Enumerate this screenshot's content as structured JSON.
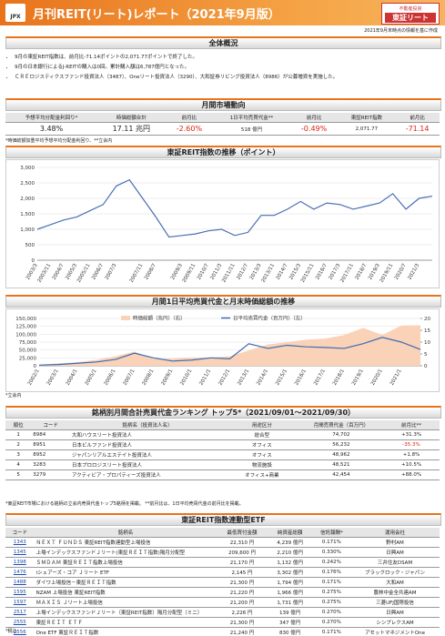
{
  "header": {
    "logo": "JPX",
    "title": "月刊REIT(リート)レポート（2021年9月版）",
    "brand_top": "不動産投資",
    "brand": "東証リート",
    "date_note": "2021年9月末時点の情報を基に作成"
  },
  "overview": {
    "title": "全体概況",
    "bullets": [
      "9月の東証REIT指数は、前月比-71.14ポイントの2,071.77ポイントで終了した。",
      "9月の日本銀行によるJ-REITの購入は0回。累計購入額は6,787億円となった。",
      "ＣＲＥロジスティクスファンド投資法人（3487）、Oneリート投資法人（3290）、大和証券リビング投資法人（8986）が公募増資を実施した。"
    ]
  },
  "market": {
    "title": "月間市場動向",
    "headers": [
      "予想平均分配金利回り*",
      "時価総額合計",
      "前月比",
      "1日平均売買代金**",
      "前月比",
      "東証REIT指数",
      "前月比"
    ],
    "values": [
      "3.48%",
      "17.11 兆円",
      "-2.60%",
      "518 億円",
      "-0.49%",
      "2,071.77",
      "-71.14"
    ],
    "note": "*時価総額加重平均予想平均分配金利回り、**立会内"
  },
  "chart_data": [
    {
      "type": "line",
      "title": "東証REIT指数の推移（ポイント）",
      "color": "#4a6fb5",
      "grid": true,
      "categories": [
        "2003/3",
        "2003/11",
        "2004/7",
        "2005/3",
        "2005/11",
        "2006/7",
        "2007/3",
        null,
        "2007/11",
        "2008/7",
        null,
        "2009/3",
        "2009/11",
        "2010/7",
        "2011/3",
        "2011/11",
        "2012/7",
        "2013/3",
        "2013/11",
        "2014/7",
        "2015/3",
        "2015/11",
        "2016/7",
        "2017/3",
        "2017/11",
        "2018/7",
        "2019/3",
        "2019/11",
        "2020/7",
        "2021/3",
        null
      ],
      "values": [
        1000,
        1150,
        1300,
        1400,
        1600,
        1800,
        2400,
        2600,
        2000,
        1400,
        750,
        800,
        850,
        950,
        1000,
        800,
        900,
        1450,
        1450,
        1650,
        1900,
        1650,
        1850,
        1800,
        1650,
        1750,
        1850,
        2150,
        1650,
        2000,
        2071.77
      ],
      "ylim": [
        0,
        3000
      ],
      "yticks": [
        0,
        500,
        {
          "value": 1000,
          "label": "1,000"
        },
        {
          "value": 1500,
          "label": "1,500"
        },
        {
          "value": 2000,
          "label": "2,000"
        },
        {
          "value": 2500,
          "label": "2,500"
        },
        {
          "value": 3000,
          "label": "3,000"
        }
      ]
    },
    {
      "type": "combo",
      "title": "月間1日平均売買代金と月末時価総額の推移",
      "note": "*立会内",
      "grid": true,
      "categories": [
        "2002/1",
        "2003/1",
        "2004/1",
        "2005/1",
        "2006/1",
        "2007/1",
        "2008/1",
        "2009/1",
        "2010/1",
        "2011/1",
        "2012/1",
        "2013/1",
        "2014/1",
        "2015/1",
        "2016/1",
        "2017/1",
        "2018/1",
        "2019/1",
        "2020/1",
        "2021/1",
        null
      ],
      "series": [
        {
          "name": "時価総額（兆円）（右）",
          "color": "#f9d2b8",
          "mark": "area",
          "axis": "y2",
          "values": [
            0.5,
            1,
            1.5,
            2.5,
            4,
            6,
            3,
            3,
            3.5,
            3.5,
            4,
            6.5,
            9,
            10,
            11,
            11.5,
            13,
            16,
            13,
            17,
            17.11
          ]
        },
        {
          "name": "日平均売買代金（百万円）（左）",
          "color": "#3d6bb3",
          "mark": "line",
          "values": [
            2000,
            4000,
            8000,
            12000,
            20000,
            40000,
            25000,
            15000,
            18000,
            25000,
            22000,
            70000,
            55000,
            65000,
            60000,
            58000,
            55000,
            70000,
            90000,
            75000,
            51800
          ]
        }
      ],
      "ylim": [
        0,
        150000
      ],
      "yticks": [
        0,
        {
          "value": 25000,
          "label": "25,000"
        },
        {
          "value": 50000,
          "label": "50,000"
        },
        {
          "value": 75000,
          "label": "75,000"
        },
        {
          "value": 100000,
          "label": "100,000"
        },
        {
          "value": 125000,
          "label": "125,000"
        },
        {
          "value": 150000,
          "label": "150,000"
        }
      ],
      "y2lim": [
        0,
        20
      ],
      "y2ticks": [
        0,
        5,
        10,
        15,
        20
      ]
    }
  ],
  "ranking": {
    "title": "銘柄別月間合計売買代金ランキング トップ5*（2021/09/01～2021/09/30）",
    "headers": [
      "順位",
      "コード",
      "銘柄名（投資法人名）",
      "用途区分",
      "月間売買代金（百万円）",
      "前月比**"
    ],
    "rows": [
      [
        "1",
        "8984",
        "大和ハウスリート投資法人",
        "総合型",
        "74,702",
        "+31.3%"
      ],
      [
        "2",
        "8951",
        "日本ビルファンド投資法人",
        "オフィス",
        "56,232",
        "-35.3%"
      ],
      [
        "3",
        "8952",
        "ジャパンリアルエステイト投資法人",
        "オフィス",
        "48,962",
        "+1.8%"
      ],
      [
        "4",
        "3283",
        "日本プロロジスリート投資法人",
        "物流施設",
        "48,521",
        "+10.5%"
      ],
      [
        "5",
        "3279",
        "アクティビア・プロパティーズ投資法人",
        "オフィス+商業",
        "42,454",
        "+88.0%"
      ]
    ],
    "note": "*東証REIT市場における銘柄の立会内売買代金トップ5銘柄を掲載。 **前月比は、1日平均売買代金の前月比を掲載。"
  },
  "etf": {
    "title": "東証REIT指数連動型ETF",
    "headers": [
      "コード",
      "銘柄名",
      "最低買付金額",
      "純資産総額",
      "信託報酬*",
      "運用会社"
    ],
    "rows": [
      [
        "1343",
        "ＮＥＸＴ ＦＵＮＤＳ 東証REIT指数連動型上場投信",
        "22,310 円",
        "4,239 億円",
        "0.171%",
        "野村AM"
      ],
      [
        "1345",
        "上場インデックスファンドＪリート(東証ＲＥＩＴ指数)隔月分配型",
        "209,600 円",
        "2,210 億円",
        "0.330%",
        "日興AM"
      ],
      [
        "1398",
        "ＳＭＤＡＭ 東証ＲＥＩＴ指数上場投信",
        "21,170 円",
        "1,132 億円",
        "0.242%",
        "三井住友DSAM"
      ],
      [
        "1476",
        "iシェアーズ・コア Ｊリート ETF",
        "2,145 円",
        "3,302 億円",
        "0.176%",
        "ブラックロック・ジャパン"
      ],
      [
        "1488",
        "ダイワ上場投信－東証ＲＥＩＴ指数",
        "21,300 円",
        "1,794 億円",
        "0.171%",
        "大和AM"
      ],
      [
        "1595",
        "NZAM 上場投信 東証REIT指数",
        "21,220 円",
        "1,966 億円",
        "0.275%",
        "農林中金全共連AM"
      ],
      [
        "1597",
        "ＭＡＸＩＳ Ｊリート上場投信",
        "21,200 円",
        "1,731 億円",
        "0.275%",
        "三菱UFJ国際投信"
      ],
      [
        "2517",
        "上場インデックスファンドＪリート（東証REIT指数）隔月分配型（ミニ）",
        "2,226 円",
        "139 億円",
        "0.270%",
        "日興AM"
      ],
      [
        "2555",
        "東証ＲＥＩＴ ＥＴＦ",
        "21,300 円",
        "347 億円",
        "0.270%",
        "シンプレクスAM"
      ],
      [
        "2556",
        "One ETF 東証ＲＥＩＴ指数",
        "21,240 円",
        "830 億円",
        "0.171%",
        "アセットマネジメントOne"
      ]
    ],
    "note": "*税込"
  }
}
